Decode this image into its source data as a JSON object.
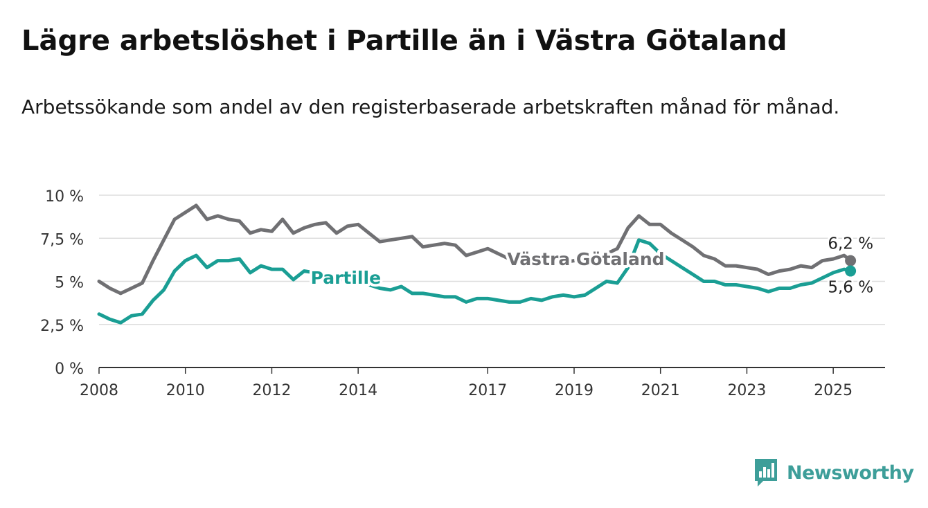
{
  "title": "Lägre arbetslöshet i Partille än i Västra Götaland",
  "subtitle": "Arbetssökande som andel av den registerbaserade arbetskraften månad för månad.",
  "brand": {
    "name": "Newsworthy",
    "icon": "newsworthy-logo-icon"
  },
  "colors": {
    "vastra_gotaland": "#707073",
    "partille": "#1a9e94",
    "grid": "#dddddd",
    "axis": "#333333",
    "brand": "#3d9e99"
  },
  "chart_data": {
    "type": "line",
    "ylim": [
      0,
      10
    ],
    "xlim": [
      2008,
      2026.2
    ],
    "y_ticks": [
      {
        "value": 0,
        "label": "0 %"
      },
      {
        "value": 2.5,
        "label": "2,5 %"
      },
      {
        "value": 5,
        "label": "5 %"
      },
      {
        "value": 7.5,
        "label": "7,5 %"
      },
      {
        "value": 10,
        "label": "10 %"
      }
    ],
    "x_ticks": [
      {
        "value": 2008,
        "label": "2008"
      },
      {
        "value": 2010,
        "label": "2010"
      },
      {
        "value": 2012,
        "label": "2012"
      },
      {
        "value": 2014,
        "label": "2014"
      },
      {
        "value": 2017,
        "label": "2017"
      },
      {
        "value": 2019,
        "label": "2019"
      },
      {
        "value": 2021,
        "label": "2021"
      },
      {
        "value": 2023,
        "label": "2023"
      },
      {
        "value": 2025,
        "label": "2025"
      }
    ],
    "grid": true,
    "series": [
      {
        "name": "Västra Götaland",
        "end_label": "6,2 %",
        "x": [
          2008.0,
          2008.25,
          2008.5,
          2008.75,
          2009.0,
          2009.25,
          2009.5,
          2009.75,
          2010.0,
          2010.25,
          2010.5,
          2010.75,
          2011.0,
          2011.25,
          2011.5,
          2011.75,
          2012.0,
          2012.25,
          2012.5,
          2012.75,
          2013.0,
          2013.25,
          2013.5,
          2013.75,
          2014.0,
          2014.25,
          2014.5,
          2014.75,
          2015.0,
          2015.25,
          2015.5,
          2015.75,
          2016.0,
          2016.25,
          2016.5,
          2016.75,
          2017.0,
          2017.25,
          2017.5,
          2017.75,
          2018.0,
          2018.25,
          2018.5,
          2018.75,
          2019.0,
          2019.25,
          2019.5,
          2019.75,
          2020.0,
          2020.25,
          2020.5,
          2020.75,
          2021.0,
          2021.25,
          2021.5,
          2021.75,
          2022.0,
          2022.25,
          2022.5,
          2022.75,
          2023.0,
          2023.25,
          2023.5,
          2023.75,
          2024.0,
          2024.25,
          2024.5,
          2024.75,
          2025.0,
          2025.25,
          2025.4
        ],
        "values": [
          5.0,
          4.6,
          4.3,
          4.6,
          4.9,
          6.2,
          7.4,
          8.6,
          9.0,
          9.4,
          8.6,
          8.8,
          8.6,
          8.5,
          7.8,
          8.0,
          7.9,
          8.6,
          7.8,
          8.1,
          8.3,
          8.4,
          7.8,
          8.2,
          8.3,
          7.8,
          7.3,
          7.4,
          7.5,
          7.6,
          7.0,
          7.1,
          7.2,
          7.1,
          6.5,
          6.7,
          6.9,
          6.6,
          6.3,
          6.2,
          6.3,
          6.1,
          6.2,
          6.1,
          6.2,
          6.3,
          6.4,
          6.6,
          6.9,
          8.1,
          8.8,
          8.3,
          8.3,
          7.8,
          7.4,
          7.0,
          6.5,
          6.3,
          5.9,
          5.9,
          5.8,
          5.7,
          5.4,
          5.6,
          5.7,
          5.9,
          5.8,
          6.2,
          6.3,
          6.5,
          6.2
        ]
      },
      {
        "name": "Partille",
        "end_label": "5,6 %",
        "x": [
          2008.0,
          2008.25,
          2008.5,
          2008.75,
          2009.0,
          2009.25,
          2009.5,
          2009.75,
          2010.0,
          2010.25,
          2010.5,
          2010.75,
          2011.0,
          2011.25,
          2011.5,
          2011.75,
          2012.0,
          2012.25,
          2012.5,
          2012.75,
          2013.0,
          2013.25,
          2013.5,
          2013.75,
          2014.0,
          2014.25,
          2014.5,
          2014.75,
          2015.0,
          2015.25,
          2015.5,
          2015.75,
          2016.0,
          2016.25,
          2016.5,
          2016.75,
          2017.0,
          2017.25,
          2017.5,
          2017.75,
          2018.0,
          2018.25,
          2018.5,
          2018.75,
          2019.0,
          2019.25,
          2019.5,
          2019.75,
          2020.0,
          2020.25,
          2020.5,
          2020.75,
          2021.0,
          2021.25,
          2021.5,
          2021.75,
          2022.0,
          2022.25,
          2022.5,
          2022.75,
          2023.0,
          2023.25,
          2023.5,
          2023.75,
          2024.0,
          2024.25,
          2024.5,
          2024.75,
          2025.0,
          2025.25,
          2025.4
        ],
        "values": [
          3.1,
          2.8,
          2.6,
          3.0,
          3.1,
          3.9,
          4.5,
          5.6,
          6.2,
          6.5,
          5.8,
          6.2,
          6.2,
          6.3,
          5.5,
          5.9,
          5.7,
          5.7,
          5.1,
          5.6,
          5.5,
          5.4,
          5.2,
          5.1,
          4.9,
          4.8,
          4.6,
          4.5,
          4.7,
          4.3,
          4.3,
          4.2,
          4.1,
          4.1,
          3.8,
          4.0,
          4.0,
          3.9,
          3.8,
          3.8,
          4.0,
          3.9,
          4.1,
          4.2,
          4.1,
          4.2,
          4.6,
          5.0,
          4.9,
          5.8,
          7.4,
          7.2,
          6.6,
          6.2,
          5.8,
          5.4,
          5.0,
          5.0,
          4.8,
          4.8,
          4.7,
          4.6,
          4.4,
          4.6,
          4.6,
          4.8,
          4.9,
          5.2,
          5.5,
          5.7,
          5.6
        ]
      }
    ]
  }
}
